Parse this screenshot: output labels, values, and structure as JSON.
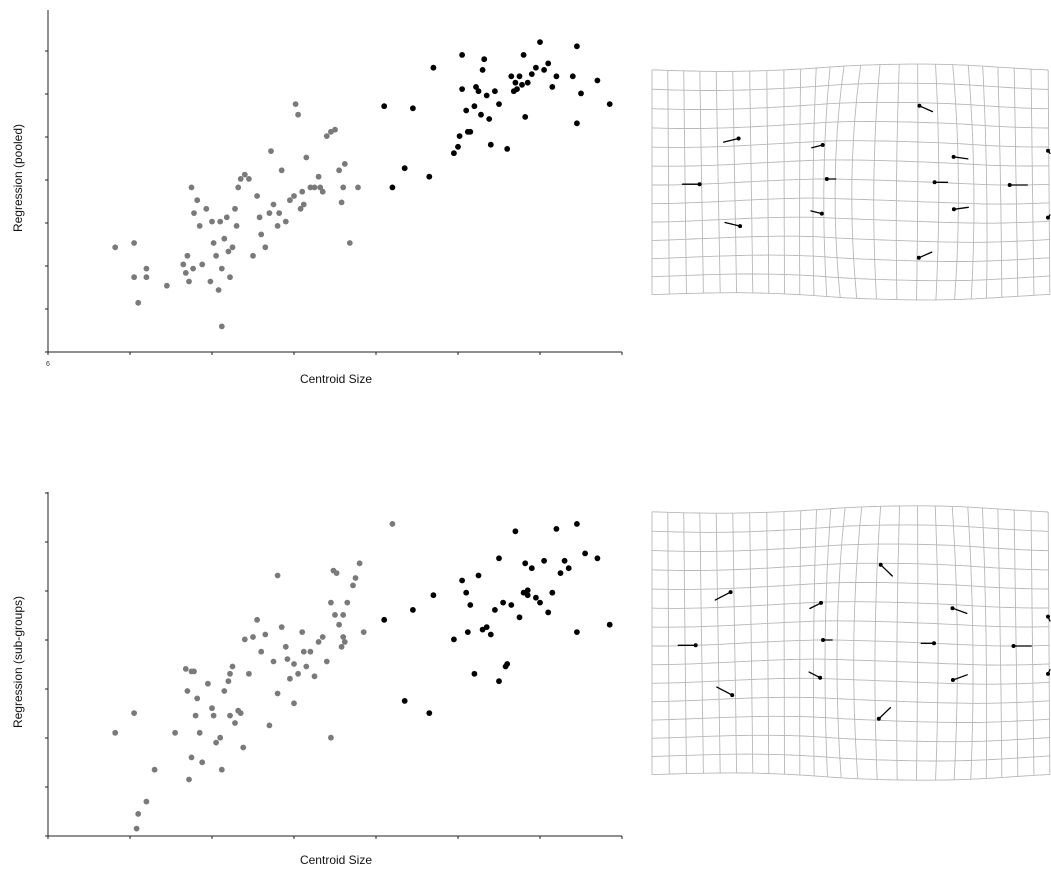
{
  "chart_data": [
    {
      "type": "scatter",
      "xlabel": "Centroid Size",
      "ylabel": "Regression (pooled)",
      "x_tick_labels": [
        "6"
      ],
      "xlim": [
        0,
        7
      ],
      "ylim": [
        0,
        8
      ],
      "grid": false,
      "colors": {
        "group_a": "#7a7a7a",
        "group_b": "#000000"
      },
      "series": [
        {
          "color": "#7a7a7a",
          "points": [
            [
              0.82,
              2.45
            ],
            [
              1.05,
              2.55
            ],
            [
              1.05,
              1.75
            ],
            [
              1.2,
              1.95
            ],
            [
              1.1,
              1.15
            ],
            [
              1.2,
              1.75
            ],
            [
              1.45,
              1.55
            ],
            [
              1.65,
              2.05
            ],
            [
              1.75,
              3.85
            ],
            [
              1.78,
              3.25
            ],
            [
              1.82,
              3.55
            ],
            [
              1.85,
              2.95
            ],
            [
              1.7,
              2.25
            ],
            [
              1.72,
              1.65
            ],
            [
              1.88,
              2.05
            ],
            [
              1.93,
              3.35
            ],
            [
              2.0,
              3.05
            ],
            [
              2.02,
              2.55
            ],
            [
              2.05,
              2.25
            ],
            [
              2.08,
              1.45
            ],
            [
              2.1,
              3.05
            ],
            [
              2.12,
              1.95
            ],
            [
              2.15,
              2.65
            ],
            [
              2.18,
              3.15
            ],
            [
              2.2,
              2.35
            ],
            [
              2.22,
              1.75
            ],
            [
              2.25,
              2.45
            ],
            [
              2.28,
              3.35
            ],
            [
              2.3,
              2.95
            ],
            [
              2.32,
              3.85
            ],
            [
              2.35,
              4.05
            ],
            [
              2.4,
              4.15
            ],
            [
              2.45,
              4.05
            ],
            [
              2.5,
              2.25
            ],
            [
              2.55,
              3.65
            ],
            [
              2.58,
              3.15
            ],
            [
              2.6,
              2.75
            ],
            [
              2.65,
              2.45
            ],
            [
              2.7,
              3.25
            ],
            [
              2.72,
              4.7
            ],
            [
              2.75,
              3.45
            ],
            [
              2.8,
              2.95
            ],
            [
              2.82,
              3.25
            ],
            [
              2.85,
              4.25
            ],
            [
              2.9,
              3.05
            ],
            [
              2.95,
              3.55
            ],
            [
              3.0,
              3.65
            ],
            [
              3.02,
              5.8
            ],
            [
              3.05,
              5.55
            ],
            [
              3.08,
              3.35
            ],
            [
              3.1,
              3.75
            ],
            [
              3.12,
              3.45
            ],
            [
              3.15,
              4.55
            ],
            [
              3.2,
              3.85
            ],
            [
              3.25,
              3.85
            ],
            [
              3.3,
              4.1
            ],
            [
              3.32,
              3.85
            ],
            [
              3.35,
              3.75
            ],
            [
              3.4,
              5.05
            ],
            [
              3.45,
              5.15
            ],
            [
              3.5,
              5.2
            ],
            [
              3.55,
              4.25
            ],
            [
              3.58,
              3.5
            ],
            [
              3.6,
              3.85
            ],
            [
              3.62,
              4.4
            ],
            [
              3.68,
              2.55
            ],
            [
              3.78,
              3.85
            ],
            [
              1.77,
              1.95
            ],
            [
              1.98,
              1.65
            ],
            [
              2.12,
              0.6
            ],
            [
              1.68,
              1.85
            ]
          ]
        },
        {
          "color": "#000000",
          "points": [
            [
              4.1,
              5.75
            ],
            [
              4.2,
              3.85
            ],
            [
              4.35,
              4.3
            ],
            [
              4.45,
              5.7
            ],
            [
              4.65,
              4.1
            ],
            [
              4.7,
              6.65
            ],
            [
              4.95,
              4.65
            ],
            [
              5.0,
              4.8
            ],
            [
              5.02,
              5.05
            ],
            [
              5.05,
              6.15
            ],
            [
              5.05,
              6.95
            ],
            [
              5.1,
              5.65
            ],
            [
              5.12,
              5.15
            ],
            [
              5.15,
              5.15
            ],
            [
              5.2,
              5.75
            ],
            [
              5.22,
              6.2
            ],
            [
              5.25,
              6.1
            ],
            [
              5.28,
              5.55
            ],
            [
              5.3,
              6.6
            ],
            [
              5.32,
              6.85
            ],
            [
              5.35,
              6.0
            ],
            [
              5.38,
              5.45
            ],
            [
              5.4,
              4.85
            ],
            [
              5.45,
              6.1
            ],
            [
              5.5,
              5.8
            ],
            [
              5.6,
              4.75
            ],
            [
              5.65,
              6.45
            ],
            [
              5.68,
              6.1
            ],
            [
              5.7,
              6.3
            ],
            [
              5.72,
              6.15
            ],
            [
              5.75,
              6.45
            ],
            [
              5.78,
              6.25
            ],
            [
              5.8,
              6.95
            ],
            [
              5.82,
              5.5
            ],
            [
              5.85,
              6.3
            ],
            [
              5.9,
              6.5
            ],
            [
              5.95,
              6.65
            ],
            [
              6.0,
              7.25
            ],
            [
              6.05,
              6.6
            ],
            [
              6.1,
              6.75
            ],
            [
              6.15,
              6.2
            ],
            [
              6.2,
              6.45
            ],
            [
              6.4,
              6.45
            ],
            [
              6.45,
              5.35
            ],
            [
              6.45,
              7.15
            ],
            [
              6.5,
              6.05
            ],
            [
              6.7,
              6.35
            ],
            [
              6.85,
              5.8
            ]
          ]
        }
      ]
    },
    {
      "type": "scatter",
      "xlabel": "Centroid Size",
      "ylabel": "Regression (sub-groups)",
      "xlim": [
        0,
        7
      ],
      "ylim": [
        0,
        7
      ],
      "grid": false,
      "colors": {
        "group_a": "#7a7a7a",
        "group_b": "#000000"
      },
      "series": [
        {
          "color": "#7a7a7a",
          "points": [
            [
              0.82,
              2.1
            ],
            [
              1.05,
              2.5
            ],
            [
              1.08,
              0.15
            ],
            [
              1.1,
              0.45
            ],
            [
              1.2,
              0.7
            ],
            [
              1.3,
              1.35
            ],
            [
              1.55,
              2.1
            ],
            [
              1.7,
              2.95
            ],
            [
              1.75,
              3.35
            ],
            [
              1.78,
              3.35
            ],
            [
              1.72,
              1.15
            ],
            [
              1.75,
              1.6
            ],
            [
              1.8,
              2.45
            ],
            [
              1.82,
              2.8
            ],
            [
              1.85,
              2.1
            ],
            [
              1.88,
              1.5
            ],
            [
              1.95,
              3.1
            ],
            [
              2.0,
              2.6
            ],
            [
              2.02,
              2.45
            ],
            [
              2.05,
              1.9
            ],
            [
              2.1,
              2.0
            ],
            [
              2.12,
              1.35
            ],
            [
              2.15,
              2.95
            ],
            [
              2.2,
              3.15
            ],
            [
              2.22,
              2.45
            ],
            [
              2.25,
              3.45
            ],
            [
              2.28,
              2.3
            ],
            [
              2.32,
              2.55
            ],
            [
              2.35,
              2.5
            ],
            [
              2.38,
              1.8
            ],
            [
              2.4,
              4.0
            ],
            [
              2.45,
              3.3
            ],
            [
              2.5,
              4.05
            ],
            [
              2.55,
              4.4
            ],
            [
              2.6,
              3.75
            ],
            [
              2.65,
              4.1
            ],
            [
              2.7,
              2.25
            ],
            [
              2.75,
              3.55
            ],
            [
              2.8,
              2.9
            ],
            [
              2.85,
              4.25
            ],
            [
              2.9,
              3.85
            ],
            [
              2.92,
              3.6
            ],
            [
              2.95,
              3.2
            ],
            [
              3.0,
              3.5
            ],
            [
              3.05,
              3.3
            ],
            [
              3.1,
              4.15
            ],
            [
              3.12,
              3.75
            ],
            [
              3.15,
              3.45
            ],
            [
              3.2,
              3.75
            ],
            [
              3.25,
              3.25
            ],
            [
              3.3,
              3.95
            ],
            [
              3.35,
              4.05
            ],
            [
              3.4,
              3.55
            ],
            [
              3.45,
              4.75
            ],
            [
              3.5,
              4.5
            ],
            [
              3.55,
              4.3
            ],
            [
              3.58,
              3.85
            ],
            [
              3.6,
              4.05
            ],
            [
              3.62,
              3.95
            ],
            [
              3.65,
              4.75
            ],
            [
              3.72,
              5.1
            ],
            [
              3.75,
              5.25
            ],
            [
              3.8,
              5.55
            ],
            [
              3.85,
              4.15
            ],
            [
              3.6,
              4.5
            ],
            [
              3.45,
              2.0
            ],
            [
              3.0,
              2.7
            ],
            [
              2.8,
              5.3
            ],
            [
              3.48,
              5.4
            ],
            [
              3.52,
              5.35
            ],
            [
              1.68,
              3.4
            ],
            [
              2.22,
              3.3
            ],
            [
              4.2,
              6.35
            ]
          ]
        },
        {
          "color": "#000000",
          "points": [
            [
              4.1,
              4.4
            ],
            [
              4.35,
              2.75
            ],
            [
              4.45,
              4.6
            ],
            [
              4.65,
              2.5
            ],
            [
              4.7,
              4.9
            ],
            [
              4.95,
              4.0
            ],
            [
              5.05,
              5.2
            ],
            [
              5.1,
              4.95
            ],
            [
              5.12,
              4.15
            ],
            [
              5.15,
              4.7
            ],
            [
              5.2,
              3.3
            ],
            [
              5.25,
              5.3
            ],
            [
              5.3,
              4.2
            ],
            [
              5.35,
              4.25
            ],
            [
              5.4,
              4.1
            ],
            [
              5.45,
              4.6
            ],
            [
              5.5,
              5.65
            ],
            [
              5.55,
              4.75
            ],
            [
              5.58,
              3.45
            ],
            [
              5.6,
              3.5
            ],
            [
              5.65,
              4.7
            ],
            [
              5.7,
              6.2
            ],
            [
              5.75,
              4.45
            ],
            [
              5.8,
              4.95
            ],
            [
              5.82,
              5.55
            ],
            [
              5.85,
              4.9
            ],
            [
              5.9,
              5.45
            ],
            [
              5.95,
              4.85
            ],
            [
              6.0,
              4.75
            ],
            [
              6.05,
              5.6
            ],
            [
              6.1,
              4.55
            ],
            [
              6.15,
              4.95
            ],
            [
              6.2,
              6.25
            ],
            [
              6.25,
              5.35
            ],
            [
              6.3,
              5.6
            ],
            [
              6.35,
              5.45
            ],
            [
              6.45,
              4.15
            ],
            [
              6.45,
              6.35
            ],
            [
              6.55,
              5.75
            ],
            [
              6.7,
              5.65
            ],
            [
              6.85,
              4.3
            ],
            [
              5.5,
              3.15
            ],
            [
              5.85,
              5.0
            ]
          ]
        }
      ]
    }
  ],
  "deformation_grids": [
    {
      "landmarks": [
        [
          0.12,
          0.5
        ],
        [
          0.22,
          0.3
        ],
        [
          0.22,
          0.7
        ],
        [
          0.45,
          0.35
        ],
        [
          0.45,
          0.65
        ],
        [
          0.47,
          0.5
        ],
        [
          0.67,
          0.18
        ],
        [
          0.7,
          0.5
        ],
        [
          0.74,
          0.39
        ],
        [
          0.74,
          0.61
        ],
        [
          0.67,
          0.82
        ],
        [
          0.9,
          0.5
        ],
        [
          1.0,
          0.35
        ],
        [
          1.0,
          0.65
        ]
      ]
    },
    {
      "landmarks": [
        [
          0.11,
          0.5
        ],
        [
          0.2,
          0.3
        ],
        [
          0.2,
          0.7
        ],
        [
          0.44,
          0.36
        ],
        [
          0.44,
          0.64
        ],
        [
          0.45,
          0.5
        ],
        [
          0.59,
          0.22
        ],
        [
          0.59,
          0.78
        ],
        [
          0.7,
          0.5
        ],
        [
          0.74,
          0.37
        ],
        [
          0.74,
          0.63
        ],
        [
          0.91,
          0.5
        ],
        [
          1.0,
          0.39
        ],
        [
          1.0,
          0.61
        ]
      ]
    }
  ]
}
